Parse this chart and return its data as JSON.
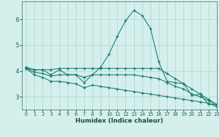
{
  "xlabel": "Humidex (Indice chaleur)",
  "bg_color": "#d4efec",
  "grid_color": "#aed8d4",
  "line_color": "#1a7a6e",
  "xlim": [
    -0.5,
    23
  ],
  "ylim": [
    2.5,
    6.7
  ],
  "yticks": [
    3,
    4,
    5,
    6
  ],
  "xticks": [
    0,
    1,
    2,
    3,
    4,
    5,
    6,
    7,
    8,
    9,
    10,
    11,
    12,
    13,
    14,
    15,
    16,
    17,
    18,
    19,
    20,
    21,
    22,
    23
  ],
  "lines": [
    {
      "x": [
        0,
        1,
        2,
        3,
        4,
        5,
        6,
        7,
        8,
        9,
        10,
        11,
        12,
        13,
        14,
        15,
        16,
        17,
        18,
        19,
        20,
        21,
        22,
        23
      ],
      "y": [
        4.15,
        4.05,
        4.05,
        3.85,
        4.05,
        3.85,
        3.85,
        3.55,
        3.85,
        4.15,
        4.65,
        5.35,
        5.95,
        6.35,
        6.15,
        5.65,
        4.35,
        3.6,
        3.55,
        3.5,
        3.05,
        3.1,
        2.7,
        2.7
      ]
    },
    {
      "x": [
        0,
        1,
        2,
        3,
        4,
        5,
        6,
        7,
        8,
        9,
        10,
        11,
        12,
        13,
        14,
        15,
        16,
        17,
        18,
        19,
        20,
        21,
        22,
        23
      ],
      "y": [
        4.1,
        4.05,
        4.05,
        4.05,
        4.1,
        4.1,
        4.1,
        4.1,
        4.1,
        4.1,
        4.1,
        4.1,
        4.1,
        4.1,
        4.1,
        4.1,
        4.1,
        3.9,
        3.7,
        3.5,
        3.3,
        3.1,
        2.9,
        2.7
      ]
    },
    {
      "x": [
        0,
        1,
        2,
        3,
        4,
        5,
        6,
        7,
        8,
        9,
        10,
        11,
        12,
        13,
        14,
        15,
        16,
        17,
        18,
        19,
        20,
        21,
        22,
        23
      ],
      "y": [
        4.1,
        3.95,
        3.9,
        3.8,
        3.85,
        3.85,
        3.85,
        3.75,
        3.85,
        3.85,
        3.85,
        3.85,
        3.85,
        3.85,
        3.8,
        3.75,
        3.7,
        3.55,
        3.4,
        3.3,
        3.1,
        3.0,
        2.85,
        2.65
      ]
    },
    {
      "x": [
        0,
        1,
        2,
        3,
        4,
        5,
        6,
        7,
        8,
        9,
        10,
        11,
        12,
        13,
        14,
        15,
        16,
        17,
        18,
        19,
        20,
        21,
        22,
        23
      ],
      "y": [
        4.1,
        3.85,
        3.75,
        3.6,
        3.6,
        3.55,
        3.5,
        3.35,
        3.45,
        3.4,
        3.35,
        3.3,
        3.25,
        3.2,
        3.15,
        3.1,
        3.05,
        3.0,
        2.95,
        2.9,
        2.85,
        2.8,
        2.75,
        2.6
      ]
    }
  ]
}
